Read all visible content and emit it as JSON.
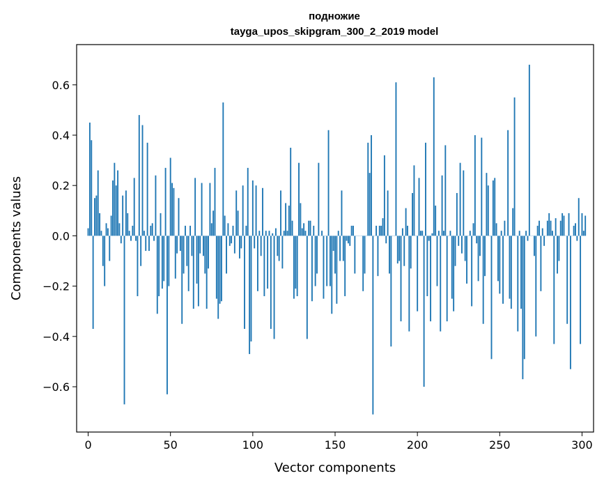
{
  "chart_data": {
    "type": "bar",
    "title": "подножие",
    "subtitle": "tayga_upos_skipgram_300_2_2019 model",
    "xlabel": "Vector components",
    "ylabel": "Components values",
    "xlim": [
      -7,
      307
    ],
    "ylim": [
      -0.78,
      0.76
    ],
    "xticks": [
      0,
      50,
      100,
      150,
      200,
      250,
      300
    ],
    "xtick_labels": [
      "0",
      "50",
      "100",
      "150",
      "200",
      "250",
      "300"
    ],
    "yticks": [
      -0.6,
      -0.4,
      -0.2,
      0.0,
      0.2,
      0.4,
      0.6
    ],
    "ytick_labels": [
      "−0.6",
      "−0.4",
      "−0.2",
      "0.0",
      "0.2",
      "0.4",
      "0.6"
    ],
    "grid": false,
    "legend": "none",
    "bar_color": "#1f77b4",
    "values": [
      0.03,
      0.45,
      0.38,
      -0.37,
      0.15,
      0.16,
      0.26,
      0.09,
      0.02,
      -0.12,
      -0.2,
      0.05,
      0.03,
      -0.1,
      0.08,
      0.22,
      0.29,
      0.2,
      0.26,
      0.05,
      -0.03,
      0.16,
      -0.67,
      0.18,
      0.09,
      0.02,
      -0.02,
      0.04,
      0.23,
      -0.02,
      -0.24,
      0.48,
      -0.12,
      0.44,
      0.02,
      -0.06,
      0.37,
      -0.06,
      0.04,
      0.05,
      -0.02,
      0.24,
      -0.31,
      -0.24,
      0.09,
      -0.21,
      -0.18,
      0.27,
      -0.63,
      -0.2,
      0.31,
      0.21,
      0.19,
      -0.17,
      -0.07,
      0.15,
      -0.06,
      -0.35,
      -0.15,
      0.04,
      -0.12,
      -0.22,
      0.04,
      -0.08,
      -0.29,
      0.23,
      -0.19,
      -0.28,
      -0.07,
      0.21,
      -0.08,
      -0.15,
      -0.29,
      -0.13,
      0.21,
      0.05,
      0.1,
      0.27,
      -0.25,
      -0.33,
      -0.27,
      -0.26,
      0.53,
      0.08,
      -0.15,
      0.05,
      -0.04,
      -0.03,
      0.04,
      -0.07,
      0.18,
      0.1,
      -0.09,
      -0.05,
      0.2,
      -0.37,
      0.04,
      0.27,
      -0.47,
      -0.42,
      0.22,
      -0.05,
      0.2,
      -0.22,
      0.02,
      -0.08,
      0.19,
      -0.24,
      0.02,
      -0.21,
      0.02,
      -0.37,
      0.01,
      -0.41,
      0.03,
      -0.08,
      -0.1,
      0.18,
      -0.13,
      0.02,
      0.13,
      0.02,
      0.12,
      0.35,
      0.06,
      -0.25,
      -0.21,
      -0.24,
      0.29,
      0.13,
      0.03,
      0.05,
      0.02,
      -0.41,
      0.06,
      0.06,
      -0.26,
      0.04,
      -0.2,
      -0.15,
      0.29,
      0.0,
      0.02,
      -0.25,
      0.0,
      -0.2,
      0.42,
      -0.2,
      -0.31,
      -0.06,
      -0.15,
      -0.27,
      0.02,
      -0.1,
      0.18,
      -0.1,
      -0.24,
      -0.02,
      -0.03,
      -0.04,
      0.04,
      0.04,
      -0.15,
      0.0,
      0.0,
      0.0,
      0.0,
      -0.22,
      -0.15,
      0.0,
      0.37,
      0.25,
      0.4,
      -0.71,
      0.0,
      0.04,
      -0.16,
      0.04,
      0.04,
      0.07,
      0.32,
      -0.03,
      0.18,
      -0.15,
      -0.44,
      0.0,
      0.0,
      0.61,
      -0.11,
      -0.1,
      -0.34,
      0.03,
      -0.12,
      0.11,
      0.04,
      -0.38,
      -0.13,
      0.17,
      0.28,
      0.0,
      -0.3,
      0.23,
      0.02,
      0.02,
      -0.6,
      0.37,
      -0.24,
      -0.02,
      -0.34,
      0.01,
      0.63,
      0.12,
      -0.2,
      0.02,
      -0.38,
      0.24,
      0.02,
      0.36,
      -0.34,
      0.0,
      0.02,
      -0.25,
      -0.3,
      -0.12,
      0.17,
      -0.04,
      0.29,
      -0.07,
      0.26,
      -0.1,
      -0.19,
      0.0,
      0.02,
      -0.28,
      0.05,
      0.4,
      -0.03,
      -0.18,
      -0.08,
      0.39,
      -0.35,
      -0.16,
      0.25,
      0.2,
      0.0,
      -0.49,
      0.22,
      0.23,
      0.05,
      -0.18,
      -0.23,
      0.02,
      -0.27,
      0.06,
      0.0,
      0.42,
      -0.25,
      -0.29,
      0.11,
      0.55,
      0.0,
      -0.38,
      0.02,
      -0.29,
      -0.57,
      -0.49,
      0.02,
      -0.02,
      0.68,
      0.0,
      0.0,
      -0.08,
      -0.4,
      0.04,
      0.06,
      -0.22,
      0.03,
      -0.04,
      0.0,
      0.06,
      0.09,
      0.06,
      0.02,
      -0.43,
      0.07,
      -0.15,
      -0.1,
      0.06,
      0.09,
      0.08,
      0.0,
      -0.35,
      0.09,
      -0.53,
      0.0,
      0.04,
      0.05,
      -0.02,
      0.15,
      -0.43,
      0.09,
      0.02,
      0.08
    ]
  }
}
